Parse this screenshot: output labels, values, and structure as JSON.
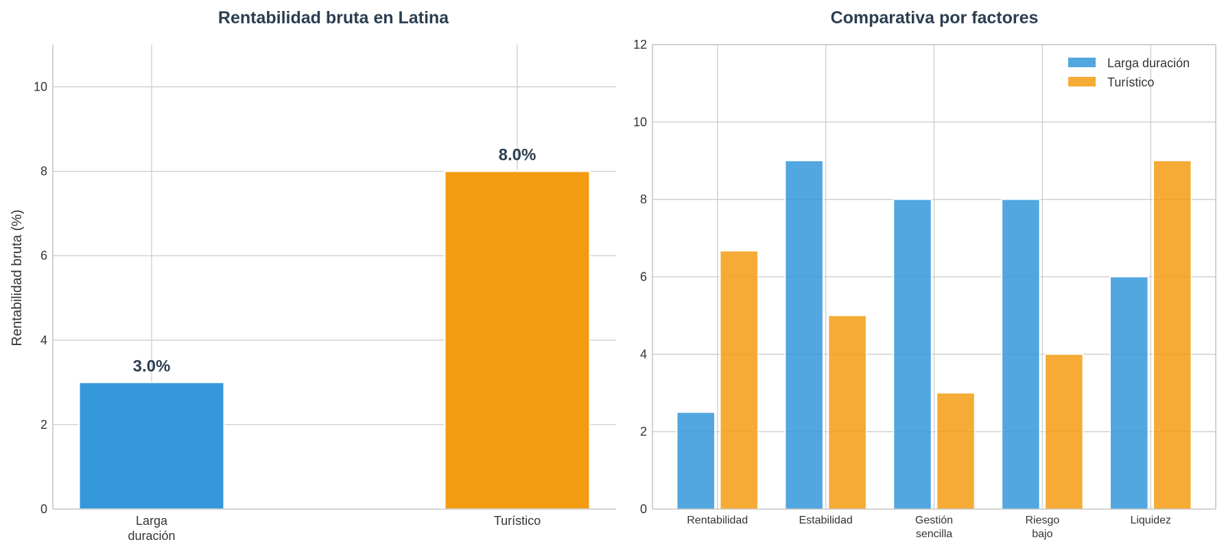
{
  "chart_data": [
    {
      "type": "bar",
      "title": "Rentabilidad bruta en Latina",
      "ylabel": "Rentabilidad bruta (%)",
      "xlabel": "",
      "categories": [
        [
          "Larga",
          "duración"
        ],
        [
          "Turístico"
        ]
      ],
      "values": [
        3.0,
        8.0
      ],
      "data_labels": [
        "3.0%",
        "8.0%"
      ],
      "colors": [
        "#3498db",
        "#f39c12"
      ],
      "ylim": [
        0,
        11
      ],
      "yticks": [
        0,
        2,
        4,
        6,
        8,
        10
      ],
      "grid": true
    },
    {
      "type": "bar",
      "title": "Comparativa por factores",
      "categories": [
        [
          "Rentabilidad"
        ],
        [
          "Estabilidad"
        ],
        [
          "Gestión",
          "sencilla"
        ],
        [
          "Riesgo",
          "bajo"
        ],
        [
          "Liquidez"
        ]
      ],
      "series": [
        {
          "name": "Larga duración",
          "values": [
            2.5,
            9,
            8,
            8,
            6
          ],
          "color": "#3498db"
        },
        {
          "name": "Turístico",
          "values": [
            6.67,
            5,
            3,
            4,
            9
          ],
          "color": "#f39c12"
        }
      ],
      "ylim": [
        0,
        12
      ],
      "yticks": [
        0,
        2,
        4,
        6,
        8,
        10,
        12
      ],
      "legend": "top-right",
      "grid": true
    }
  ]
}
